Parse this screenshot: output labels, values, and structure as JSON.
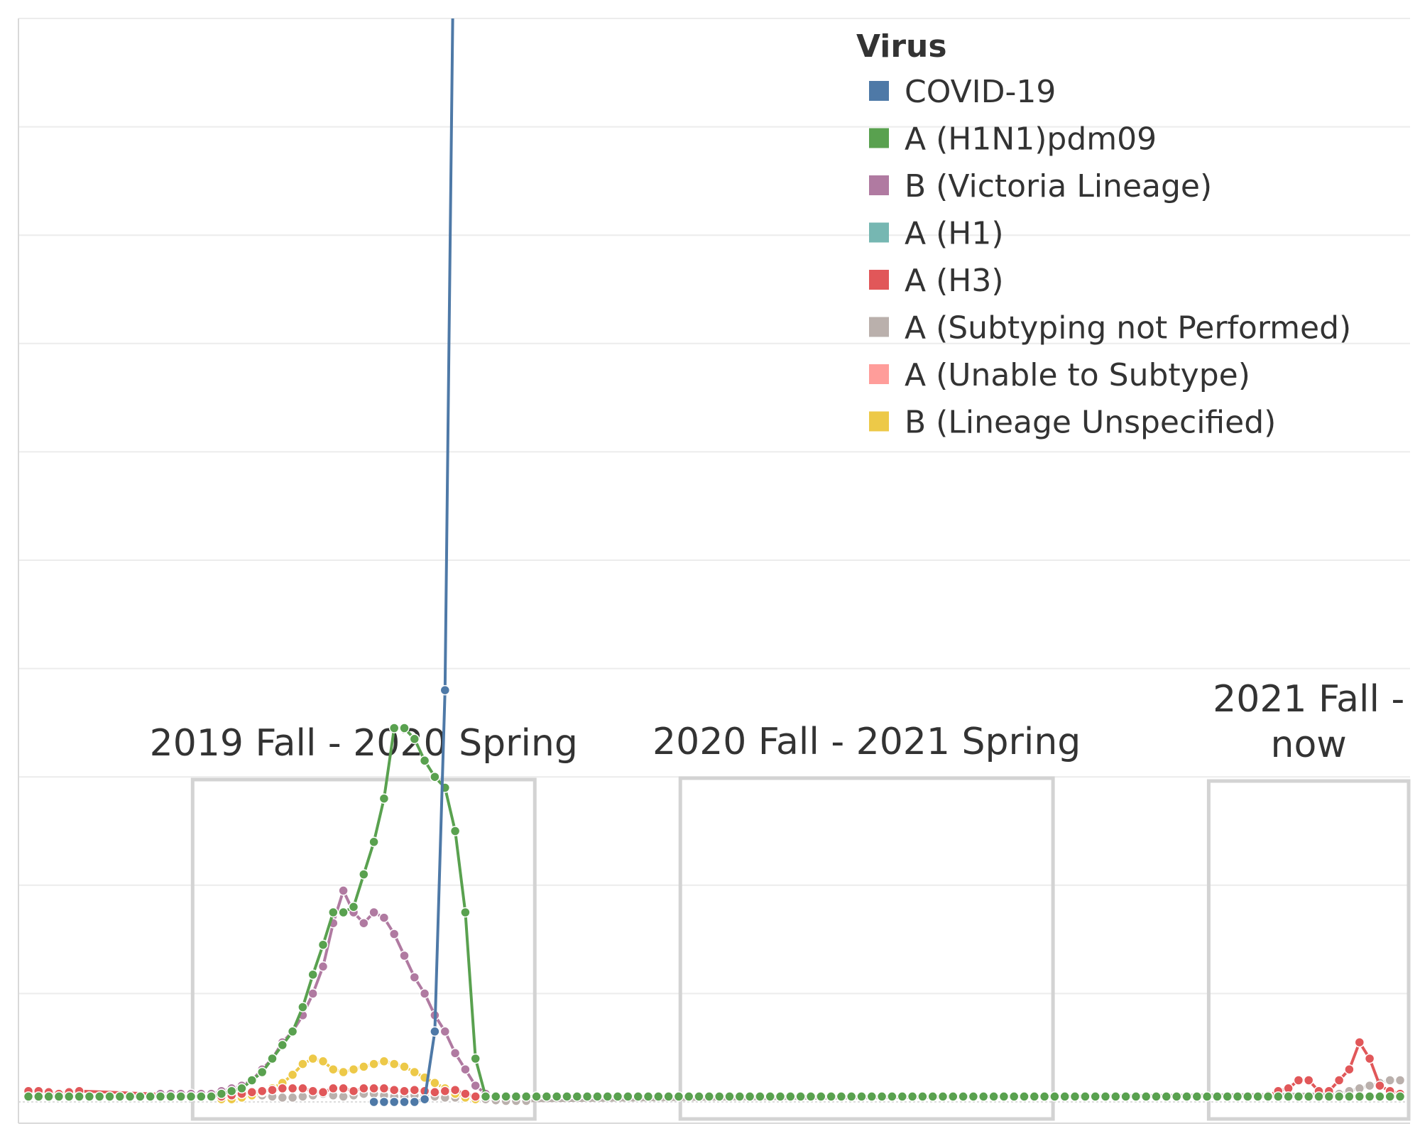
{
  "chart_data": {
    "type": "line",
    "title": "",
    "xlabel": "",
    "ylabel": "",
    "x_unit": "week index (1 = first week shown)",
    "weeks": 136,
    "ylim": [
      0,
      2000
    ],
    "grid": "horizontal",
    "legend": {
      "title": "Virus",
      "placement": "top-right"
    },
    "series": [
      {
        "name": "COVID-19",
        "color": "#4e79a7",
        "points": [
          [
            35,
            0
          ],
          [
            36,
            0
          ],
          [
            37,
            0
          ],
          [
            38,
            0
          ],
          [
            39,
            0
          ],
          [
            40,
            5
          ],
          [
            41,
            130
          ],
          [
            42,
            760
          ],
          [
            43,
            2400
          ]
        ]
      },
      {
        "name": "A (H1N1)pdm09",
        "color": "#59a14f",
        "points": [
          [
            1,
            10
          ],
          [
            2,
            10
          ],
          [
            3,
            10
          ],
          [
            4,
            10
          ],
          [
            5,
            10
          ],
          [
            6,
            10
          ],
          [
            7,
            10
          ],
          [
            8,
            10
          ],
          [
            9,
            10
          ],
          [
            10,
            10
          ],
          [
            11,
            10
          ],
          [
            12,
            10
          ],
          [
            13,
            10
          ],
          [
            14,
            10
          ],
          [
            15,
            10
          ],
          [
            16,
            10
          ],
          [
            17,
            10
          ],
          [
            18,
            10
          ],
          [
            19,
            10
          ],
          [
            20,
            15
          ],
          [
            21,
            20
          ],
          [
            22,
            25
          ],
          [
            23,
            40
          ],
          [
            24,
            55
          ],
          [
            25,
            80
          ],
          [
            26,
            105
          ],
          [
            27,
            130
          ],
          [
            28,
            175
          ],
          [
            29,
            235
          ],
          [
            30,
            290
          ],
          [
            31,
            350
          ],
          [
            32,
            350
          ],
          [
            33,
            360
          ],
          [
            34,
            420
          ],
          [
            35,
            480
          ],
          [
            36,
            560
          ],
          [
            37,
            690
          ],
          [
            38,
            690
          ],
          [
            39,
            670
          ],
          [
            40,
            630
          ],
          [
            41,
            600
          ],
          [
            42,
            580
          ],
          [
            43,
            500
          ],
          [
            44,
            350
          ],
          [
            45,
            80
          ],
          [
            46,
            10
          ],
          [
            47,
            10
          ],
          [
            48,
            10
          ],
          [
            49,
            10
          ],
          [
            50,
            10
          ],
          [
            51,
            10
          ],
          [
            52,
            10
          ],
          [
            53,
            10
          ],
          [
            54,
            10
          ],
          [
            55,
            10
          ],
          [
            56,
            10
          ],
          [
            57,
            10
          ],
          [
            58,
            10
          ],
          [
            59,
            10
          ],
          [
            60,
            10
          ],
          [
            61,
            10
          ],
          [
            62,
            10
          ],
          [
            63,
            10
          ],
          [
            64,
            10
          ],
          [
            65,
            10
          ],
          [
            66,
            10
          ],
          [
            67,
            10
          ],
          [
            68,
            10
          ],
          [
            69,
            10
          ],
          [
            70,
            10
          ],
          [
            71,
            10
          ],
          [
            72,
            10
          ],
          [
            73,
            10
          ],
          [
            74,
            10
          ],
          [
            75,
            10
          ],
          [
            76,
            10
          ],
          [
            77,
            10
          ],
          [
            78,
            10
          ],
          [
            79,
            10
          ],
          [
            80,
            10
          ],
          [
            81,
            10
          ],
          [
            82,
            10
          ],
          [
            83,
            10
          ],
          [
            84,
            10
          ],
          [
            85,
            10
          ],
          [
            86,
            10
          ],
          [
            87,
            10
          ],
          [
            88,
            10
          ],
          [
            89,
            10
          ],
          [
            90,
            10
          ],
          [
            91,
            10
          ],
          [
            92,
            10
          ],
          [
            93,
            10
          ],
          [
            94,
            10
          ],
          [
            95,
            10
          ],
          [
            96,
            10
          ],
          [
            97,
            10
          ],
          [
            98,
            10
          ],
          [
            99,
            10
          ],
          [
            100,
            10
          ],
          [
            101,
            10
          ],
          [
            102,
            10
          ],
          [
            103,
            10
          ],
          [
            104,
            10
          ],
          [
            105,
            10
          ],
          [
            106,
            10
          ],
          [
            107,
            10
          ],
          [
            108,
            10
          ],
          [
            109,
            10
          ],
          [
            110,
            10
          ],
          [
            111,
            10
          ],
          [
            112,
            10
          ],
          [
            113,
            10
          ],
          [
            114,
            10
          ],
          [
            115,
            10
          ],
          [
            116,
            10
          ],
          [
            117,
            10
          ],
          [
            118,
            10
          ],
          [
            119,
            10
          ],
          [
            120,
            10
          ],
          [
            121,
            10
          ],
          [
            122,
            10
          ],
          [
            123,
            10
          ],
          [
            124,
            10
          ],
          [
            125,
            10
          ],
          [
            126,
            10
          ],
          [
            127,
            10
          ],
          [
            128,
            10
          ],
          [
            129,
            10
          ],
          [
            130,
            10
          ],
          [
            131,
            10
          ],
          [
            132,
            10
          ],
          [
            133,
            10
          ],
          [
            134,
            10
          ],
          [
            135,
            10
          ],
          [
            136,
            10
          ]
        ]
      },
      {
        "name": "B (Victoria Lineage)",
        "color": "#b07aa1",
        "points": [
          [
            14,
            15
          ],
          [
            15,
            15
          ],
          [
            16,
            15
          ],
          [
            17,
            15
          ],
          [
            18,
            15
          ],
          [
            19,
            15
          ],
          [
            20,
            20
          ],
          [
            21,
            25
          ],
          [
            22,
            30
          ],
          [
            23,
            40
          ],
          [
            24,
            60
          ],
          [
            25,
            80
          ],
          [
            26,
            110
          ],
          [
            27,
            130
          ],
          [
            28,
            160
          ],
          [
            29,
            200
          ],
          [
            30,
            250
          ],
          [
            31,
            330
          ],
          [
            32,
            390
          ],
          [
            33,
            350
          ],
          [
            34,
            330
          ],
          [
            35,
            350
          ],
          [
            36,
            340
          ],
          [
            37,
            310
          ],
          [
            38,
            270
          ],
          [
            39,
            230
          ],
          [
            40,
            200
          ],
          [
            41,
            160
          ],
          [
            42,
            130
          ],
          [
            43,
            90
          ],
          [
            44,
            60
          ],
          [
            45,
            30
          ],
          [
            46,
            15
          ]
        ]
      },
      {
        "name": "A (H1)",
        "color": "#76b7b2",
        "points": []
      },
      {
        "name": "A (H3)",
        "color": "#e15759",
        "points": [
          [
            1,
            20
          ],
          [
            2,
            20
          ],
          [
            3,
            18
          ],
          [
            4,
            15
          ],
          [
            5,
            18
          ],
          [
            6,
            20
          ],
          [
            20,
            10
          ],
          [
            21,
            12
          ],
          [
            22,
            15
          ],
          [
            23,
            18
          ],
          [
            24,
            20
          ],
          [
            25,
            22
          ],
          [
            26,
            25
          ],
          [
            27,
            25
          ],
          [
            28,
            25
          ],
          [
            29,
            20
          ],
          [
            30,
            18
          ],
          [
            31,
            25
          ],
          [
            32,
            25
          ],
          [
            33,
            20
          ],
          [
            34,
            25
          ],
          [
            35,
            25
          ],
          [
            36,
            25
          ],
          [
            37,
            22
          ],
          [
            38,
            20
          ],
          [
            39,
            22
          ],
          [
            40,
            20
          ],
          [
            41,
            18
          ],
          [
            42,
            20
          ],
          [
            43,
            22
          ],
          [
            44,
            15
          ],
          [
            45,
            10
          ],
          [
            122,
            10
          ],
          [
            123,
            12
          ],
          [
            124,
            20
          ],
          [
            125,
            25
          ],
          [
            126,
            40
          ],
          [
            127,
            40
          ],
          [
            128,
            20
          ],
          [
            129,
            20
          ],
          [
            130,
            40
          ],
          [
            131,
            60
          ],
          [
            132,
            110
          ],
          [
            133,
            80
          ],
          [
            134,
            30
          ],
          [
            135,
            20
          ],
          [
            136,
            15
          ]
        ]
      },
      {
        "name": "A (Subtyping not Performed)",
        "color": "#bab0ac",
        "points": [
          [
            20,
            5
          ],
          [
            21,
            5
          ],
          [
            22,
            8
          ],
          [
            23,
            10
          ],
          [
            24,
            12
          ],
          [
            25,
            10
          ],
          [
            26,
            8
          ],
          [
            27,
            8
          ],
          [
            28,
            10
          ],
          [
            29,
            12
          ],
          [
            30,
            15
          ],
          [
            31,
            12
          ],
          [
            32,
            10
          ],
          [
            33,
            12
          ],
          [
            34,
            15
          ],
          [
            35,
            15
          ],
          [
            36,
            12
          ],
          [
            37,
            10
          ],
          [
            38,
            10
          ],
          [
            39,
            12
          ],
          [
            40,
            12
          ],
          [
            41,
            10
          ],
          [
            42,
            8
          ],
          [
            43,
            8
          ],
          [
            44,
            10
          ],
          [
            45,
            8
          ],
          [
            46,
            5
          ],
          [
            47,
            3
          ],
          [
            48,
            2
          ],
          [
            49,
            2
          ],
          [
            50,
            2
          ],
          [
            130,
            15
          ],
          [
            131,
            20
          ],
          [
            132,
            25
          ],
          [
            133,
            30
          ],
          [
            134,
            35
          ],
          [
            135,
            40
          ],
          [
            136,
            40
          ]
        ]
      },
      {
        "name": "A (Unable to Subtype)",
        "color": "#ff9d9a",
        "points": []
      },
      {
        "name": "B (Lineage Unspecified)",
        "color": "#edc948",
        "points": [
          [
            20,
            5
          ],
          [
            21,
            5
          ],
          [
            22,
            8
          ],
          [
            23,
            12
          ],
          [
            24,
            18
          ],
          [
            25,
            25
          ],
          [
            26,
            35
          ],
          [
            27,
            50
          ],
          [
            28,
            70
          ],
          [
            29,
            80
          ],
          [
            30,
            75
          ],
          [
            31,
            60
          ],
          [
            32,
            55
          ],
          [
            33,
            60
          ],
          [
            34,
            65
          ],
          [
            35,
            70
          ],
          [
            36,
            75
          ],
          [
            37,
            70
          ],
          [
            38,
            65
          ],
          [
            39,
            55
          ],
          [
            40,
            45
          ],
          [
            41,
            35
          ],
          [
            42,
            25
          ],
          [
            43,
            15
          ],
          [
            44,
            8
          ],
          [
            45,
            5
          ]
        ]
      }
    ],
    "annotations": [
      {
        "lines": [
          "2019 Fall - 2020 Spring"
        ],
        "start_week": 18,
        "end_week": 50
      },
      {
        "lines": [
          "2020 Fall - 2021 Spring"
        ],
        "start_week": 66,
        "end_week": 101
      },
      {
        "lines": [
          "2021 Fall -",
          "now"
        ],
        "start_week": 118,
        "end_week": 136
      }
    ]
  }
}
